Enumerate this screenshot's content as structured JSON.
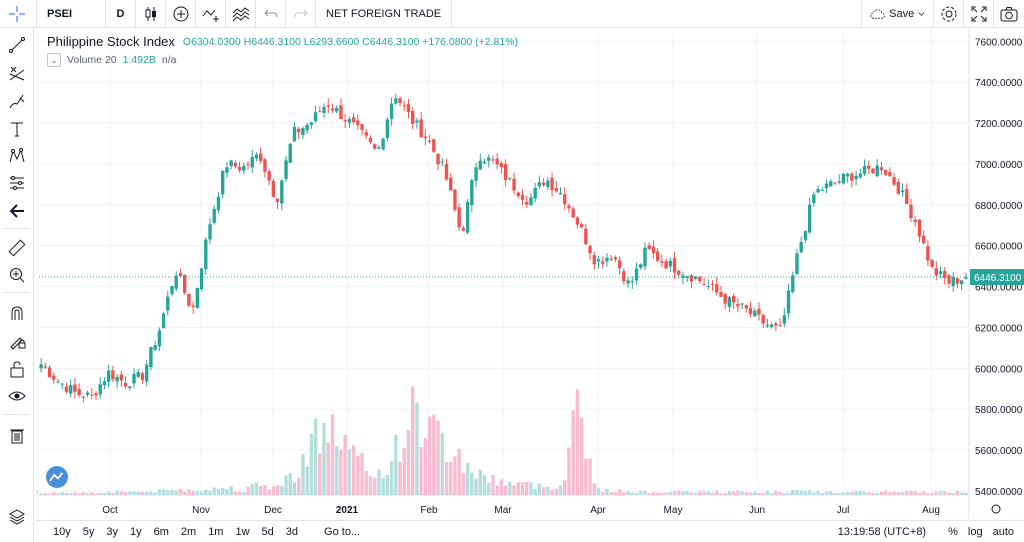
{
  "toolbar": {
    "symbol": "PSEI",
    "interval": "D",
    "indicator_label": "NET FOREIGN TRADE",
    "save_label": "Save",
    "icons": [
      "cursor-icon",
      "candles-icon",
      "add-compare-icon",
      "indicators-icon",
      "templates-icon",
      "undo-icon",
      "save-cloud-icon",
      "chevron-down-icon",
      "settings-icon",
      "fullscreen-icon",
      "camera-icon"
    ]
  },
  "legend": {
    "title": "Philippine Stock Index",
    "ohlc": "O6304.0300  H6446.3100  L6293.6600  C6446.3100  +176.0800 (+2.81%)"
  },
  "volume_legend": {
    "name": "Volume 20",
    "value": "1.492B",
    "na": "n/a"
  },
  "left_tools": [
    "crosshair-icon",
    "trendline-icon",
    "fib-icon",
    "brush-icon",
    "text-icon",
    "pattern-icon",
    "forecast-icon",
    "back-arrow-icon",
    "ruler-icon",
    "zoom-in-icon",
    "magnet-icon",
    "lock-drawings-icon",
    "lock-icon",
    "eye-icon",
    "trash-icon"
  ],
  "bottom": {
    "ranges": [
      "10y",
      "5y",
      "3y",
      "1y",
      "6m",
      "2m",
      "1m",
      "1w",
      "5d",
      "3d"
    ],
    "goto": "Go to...",
    "time": "13:19:58 (UTC+8)",
    "percent": "%",
    "log": "log",
    "auto": "auto"
  },
  "price_scale": {
    "ticks": [
      "7600.0000",
      "7400.0000",
      "7200.0000",
      "7000.0000",
      "6800.0000",
      "6600.0000",
      "6400.0000",
      "6200.0000",
      "6000.0000",
      "5800.0000",
      "5600.0000",
      "5400.0000"
    ],
    "current_label": "6446.3100"
  },
  "colors": {
    "up": "#26a69a",
    "down": "#ef5350",
    "vol_up": "#b2dfdb",
    "vol_down": "#f8bbd0",
    "grid": "#f0f3fa",
    "axis_text": "#131722"
  },
  "chart_data": {
    "type": "candlestick",
    "title": "Philippine Stock Index",
    "symbol": "PSEI",
    "interval": "D",
    "ylim": [
      5380,
      7660
    ],
    "yticks": [
      7600,
      7400,
      7200,
      7000,
      6800,
      6600,
      6400,
      6200,
      6000,
      5800,
      5600,
      5400
    ],
    "current_price": 6446.31,
    "month_labels": [
      "Oct",
      "Nov",
      "Dec",
      "2021",
      "Feb",
      "Mar",
      "Apr",
      "May",
      "Jun",
      "Jul",
      "Aug"
    ],
    "series_close_weekly": [
      6020,
      5940,
      5880,
      5860,
      5980,
      5930,
      5960,
      6180,
      6480,
      6280,
      6700,
      7000,
      6980,
      7050,
      6820,
      7150,
      7200,
      7300,
      7230,
      7150,
      7050,
      7350,
      7220,
      7120,
      6960,
      6650,
      7050,
      7000,
      6900,
      6820,
      6930,
      6850,
      6700,
      6520,
      6560,
      6400,
      6580,
      6520,
      6480,
      6440,
      6380,
      6320,
      6280,
      6220,
      6180,
      6560,
      6860,
      6900,
      6940,
      6960,
      6990,
      6880,
      6720,
      6480,
      6420,
      6446
    ],
    "volume_relative": [
      0.02,
      0.02,
      0.03,
      0.02,
      0.03,
      0.04,
      0.03,
      0.04,
      0.05,
      0.06,
      0.05,
      0.08,
      0.05,
      0.1,
      0.08,
      0.2,
      0.5,
      0.7,
      0.5,
      0.3,
      0.2,
      0.4,
      0.8,
      0.7,
      0.5,
      0.35,
      0.2,
      0.15,
      0.12,
      0.1,
      0.08,
      0.1,
      1.0,
      0.05,
      0.04,
      0.04,
      0.03,
      0.03,
      0.03,
      0.03,
      0.03,
      0.03,
      0.03,
      0.03,
      0.03,
      0.04,
      0.03,
      0.03,
      0.03,
      0.03,
      0.03,
      0.03,
      0.03,
      0.03,
      0.03,
      0.03
    ]
  }
}
